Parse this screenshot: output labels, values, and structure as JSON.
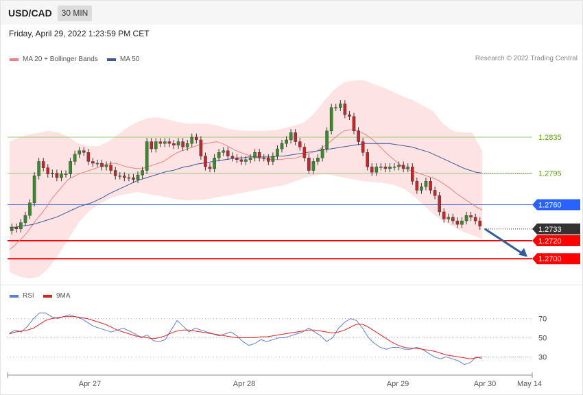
{
  "header": {
    "symbol": "USD/CAD",
    "timeframe": "30 MIN",
    "datetime": "Friday, April 29, 2022 1:23:59 PM CET"
  },
  "legend": {
    "main": [
      {
        "label": "MA 20 + Bollinger Bands",
        "color": "#f08080"
      },
      {
        "label": "MA 50",
        "color": "#3a5a9a"
      }
    ],
    "credit": "Research © 2022 Trading Central",
    "rsi": [
      {
        "label": "RSI",
        "color": "#5b7fd8"
      },
      {
        "label": "9MA",
        "color": "#e02020"
      }
    ]
  },
  "chart_data": [
    {
      "type": "candlestick",
      "ylim": [
        1.2675,
        1.2915
      ],
      "levels": [
        {
          "value": 1.2835,
          "label": "1.2835",
          "color": "#9acd70",
          "text_color": "#5aa800",
          "style": "solid"
        },
        {
          "value": 1.2795,
          "label": "1.2795",
          "color": "#9acd70",
          "text_color": "#5aa800",
          "style": "solid"
        },
        {
          "value": 1.276,
          "label": "1.2760",
          "color": "#3b6fe8",
          "badge": "#2962ff",
          "style": "solid"
        },
        {
          "value": 1.2733,
          "label": "1.2733",
          "color": "#333333",
          "badge": "#333333",
          "style": "dotted"
        },
        {
          "value": 1.272,
          "label": "1.2720",
          "color": "#ff0000",
          "badge": "#ff0000",
          "style": "thick"
        },
        {
          "value": 1.27,
          "label": "1.2700",
          "color": "#ff0000",
          "badge": "#ff0000",
          "style": "thick"
        }
      ],
      "forecast_arrow": {
        "from": [
          1.2733
        ],
        "to": [
          1.2702
        ],
        "color": "#2f5d9e"
      },
      "close": [
        1.2735,
        1.2733,
        1.274,
        1.2748,
        1.2762,
        1.2792,
        1.2808,
        1.2801,
        1.2794,
        1.2795,
        1.279,
        1.2794,
        1.2794,
        1.2808,
        1.2816,
        1.282,
        1.2818,
        1.2808,
        1.2806,
        1.2806,
        1.2802,
        1.2804,
        1.2798,
        1.2792,
        1.2792,
        1.279,
        1.279,
        1.2788,
        1.2793,
        1.2798,
        1.283,
        1.2822,
        1.283,
        1.2828,
        1.283,
        1.2828,
        1.2826,
        1.283,
        1.2824,
        1.2828,
        1.2835,
        1.2832,
        1.2814,
        1.2802,
        1.28,
        1.2812,
        1.2818,
        1.282,
        1.2814,
        1.2812,
        1.281,
        1.2808,
        1.281,
        1.2812,
        1.2818,
        1.2812,
        1.2812,
        1.2808,
        1.2814,
        1.2822,
        1.2828,
        1.2832,
        1.284,
        1.283,
        1.2824,
        1.2812,
        1.2798,
        1.2808,
        1.2812,
        1.2822,
        1.2842,
        1.2868,
        1.2868,
        1.2872,
        1.286,
        1.2858,
        1.2842,
        1.283,
        1.2818,
        1.2802,
        1.2796,
        1.2802,
        1.2802,
        1.28,
        1.2802,
        1.2802,
        1.2804,
        1.28,
        1.2802,
        1.2786,
        1.2776,
        1.278,
        1.2786,
        1.2776,
        1.277,
        1.2752,
        1.2744,
        1.2746,
        1.2742,
        1.2738,
        1.2742,
        1.2748,
        1.2746,
        1.2742,
        1.2736
      ],
      "ma20": [
        1.271,
        1.2715,
        1.2721,
        1.2727,
        1.2735,
        1.2743,
        1.275,
        1.2758,
        1.2767,
        1.2774,
        1.2781,
        1.2788,
        1.2791,
        1.2794,
        1.2796,
        1.2798,
        1.28,
        1.2802,
        1.2804,
        1.2806,
        1.2806,
        1.2804,
        1.2802,
        1.2801,
        1.28,
        1.28,
        1.2802,
        1.2804,
        1.2806,
        1.2808,
        1.2812,
        1.2816,
        1.2819,
        1.2821,
        1.2823,
        1.2825,
        1.2827,
        1.2828,
        1.2829,
        1.283,
        1.2828,
        1.2825,
        1.2822,
        1.2819,
        1.2817,
        1.2815,
        1.2813,
        1.2812,
        1.2811,
        1.281,
        1.281,
        1.281,
        1.2811,
        1.2811,
        1.2812,
        1.2814,
        1.2816,
        1.2818,
        1.282,
        1.2824,
        1.2828,
        1.2833,
        1.2838,
        1.2842,
        1.2843,
        1.2843,
        1.2841,
        1.2838,
        1.2834,
        1.2829,
        1.2823,
        1.2817,
        1.2812,
        1.2807,
        1.2802,
        1.2799,
        1.2797,
        1.2795,
        1.2793,
        1.2791,
        1.2789,
        1.2786,
        1.2782,
        1.2778,
        1.2773,
        1.2769,
        1.2765,
        1.2761,
        1.2757,
        1.2754
      ],
      "ma50": [
        1.2735,
        1.2735,
        1.2736,
        1.2737,
        1.2738,
        1.274,
        1.2742,
        1.2744,
        1.2746,
        1.2749,
        1.2752,
        1.2755,
        1.2758,
        1.276,
        1.2762,
        1.2765,
        1.2768,
        1.2772,
        1.2775,
        1.2778,
        1.2781,
        1.2784,
        1.2787,
        1.2789,
        1.2791,
        1.2793,
        1.2795,
        1.2797,
        1.2798,
        1.28,
        1.2802,
        1.2803,
        1.2805,
        1.2806,
        1.2807,
        1.2808,
        1.2809,
        1.281,
        1.2811,
        1.2812,
        1.2812,
        1.2813,
        1.2813,
        1.2813,
        1.2813,
        1.2813,
        1.2814,
        1.2814,
        1.2815,
        1.2816,
        1.2817,
        1.2818,
        1.2819,
        1.282,
        1.2821,
        1.2822,
        1.2823,
        1.2824,
        1.2825,
        1.2826,
        1.2827,
        1.2828,
        1.2828,
        1.2828,
        1.2828,
        1.2828,
        1.2827,
        1.2826,
        1.2825,
        1.2824,
        1.2822,
        1.282,
        1.2818,
        1.2815,
        1.2812,
        1.2809,
        1.2806,
        1.2803,
        1.28,
        1.2798,
        1.2796,
        1.2795
      ],
      "bb_upper": [
        1.283,
        1.2835,
        1.2838,
        1.284,
        1.2842,
        1.284,
        1.2835,
        1.2828,
        1.2825,
        1.2825,
        1.283,
        1.2838,
        1.2846,
        1.2852,
        1.2856,
        1.2857,
        1.2855,
        1.2852,
        1.285,
        1.285,
        1.285,
        1.2848,
        1.2845,
        1.2843,
        1.2842,
        1.2842,
        1.2842,
        1.2843,
        1.2845,
        1.2848,
        1.2852,
        1.2862,
        1.2876,
        1.2888,
        1.2896,
        1.2898,
        1.2898,
        1.2894,
        1.289,
        1.2885,
        1.288,
        1.2876,
        1.287,
        1.2864,
        1.285,
        1.2842,
        1.284,
        1.284,
        1.282
      ],
      "bb_lower": [
        1.2685,
        1.268,
        1.2678,
        1.268,
        1.269,
        1.2705,
        1.2722,
        1.274,
        1.2752,
        1.276,
        1.2766,
        1.277,
        1.2772,
        1.2774,
        1.2772,
        1.277,
        1.2768,
        1.2766,
        1.2765,
        1.2765,
        1.2766,
        1.2768,
        1.277,
        1.2772,
        1.2774,
        1.2776,
        1.2778,
        1.278,
        1.2782,
        1.2786,
        1.279,
        1.2792,
        1.2794,
        1.2792,
        1.279,
        1.2788,
        1.2786,
        1.2785,
        1.2784,
        1.2782,
        1.2778,
        1.277,
        1.276,
        1.275,
        1.2742,
        1.2736,
        1.273,
        1.2726,
        1.2722
      ]
    },
    {
      "type": "line",
      "ylim": [
        16,
        84
      ],
      "levels": [
        {
          "value": 70,
          "label": "70"
        },
        {
          "value": 50,
          "label": "50"
        },
        {
          "value": 30,
          "label": "30"
        }
      ],
      "series": [
        {
          "name": "RSI",
          "color": "#5b7fd8",
          "values": [
            55,
            58,
            56,
            62,
            70,
            76,
            76,
            72,
            70,
            72,
            74,
            72,
            70,
            66,
            62,
            60,
            58,
            56,
            58,
            60,
            57,
            54,
            50,
            53,
            47,
            46,
            48,
            58,
            68,
            62,
            56,
            60,
            58,
            56,
            54,
            52,
            54,
            56,
            52,
            46,
            42,
            44,
            48,
            46,
            48,
            50,
            50,
            52,
            54,
            56,
            60,
            56,
            52,
            46,
            50,
            60,
            66,
            70,
            68,
            60,
            50,
            44,
            40,
            38,
            40,
            40,
            38,
            38,
            40,
            38,
            34,
            30,
            28,
            30,
            28,
            26,
            22,
            24,
            30,
            28
          ]
        },
        {
          "name": "9MA",
          "color": "#e02020",
          "values": [
            54,
            56,
            57,
            58,
            60,
            64,
            68,
            70,
            71,
            72,
            72,
            72,
            71,
            70,
            68,
            66,
            64,
            61,
            58,
            56,
            54,
            52,
            51,
            50,
            49,
            50,
            52,
            55,
            57,
            58,
            58,
            57,
            56,
            55,
            54,
            53,
            52,
            51,
            50,
            50,
            50,
            50,
            51,
            51,
            52,
            53,
            54,
            55,
            56,
            57,
            58,
            58,
            57,
            56,
            55,
            56,
            58,
            61,
            64,
            64,
            61,
            57,
            53,
            49,
            45,
            42,
            40,
            39,
            39,
            38,
            37,
            36,
            34,
            32,
            31,
            30,
            29,
            28,
            29,
            30
          ]
        }
      ]
    }
  ],
  "x_axis": {
    "ticks": [
      "Apr 27",
      "Apr 28",
      "Apr 29",
      "Apr 30",
      "May 14"
    ]
  }
}
